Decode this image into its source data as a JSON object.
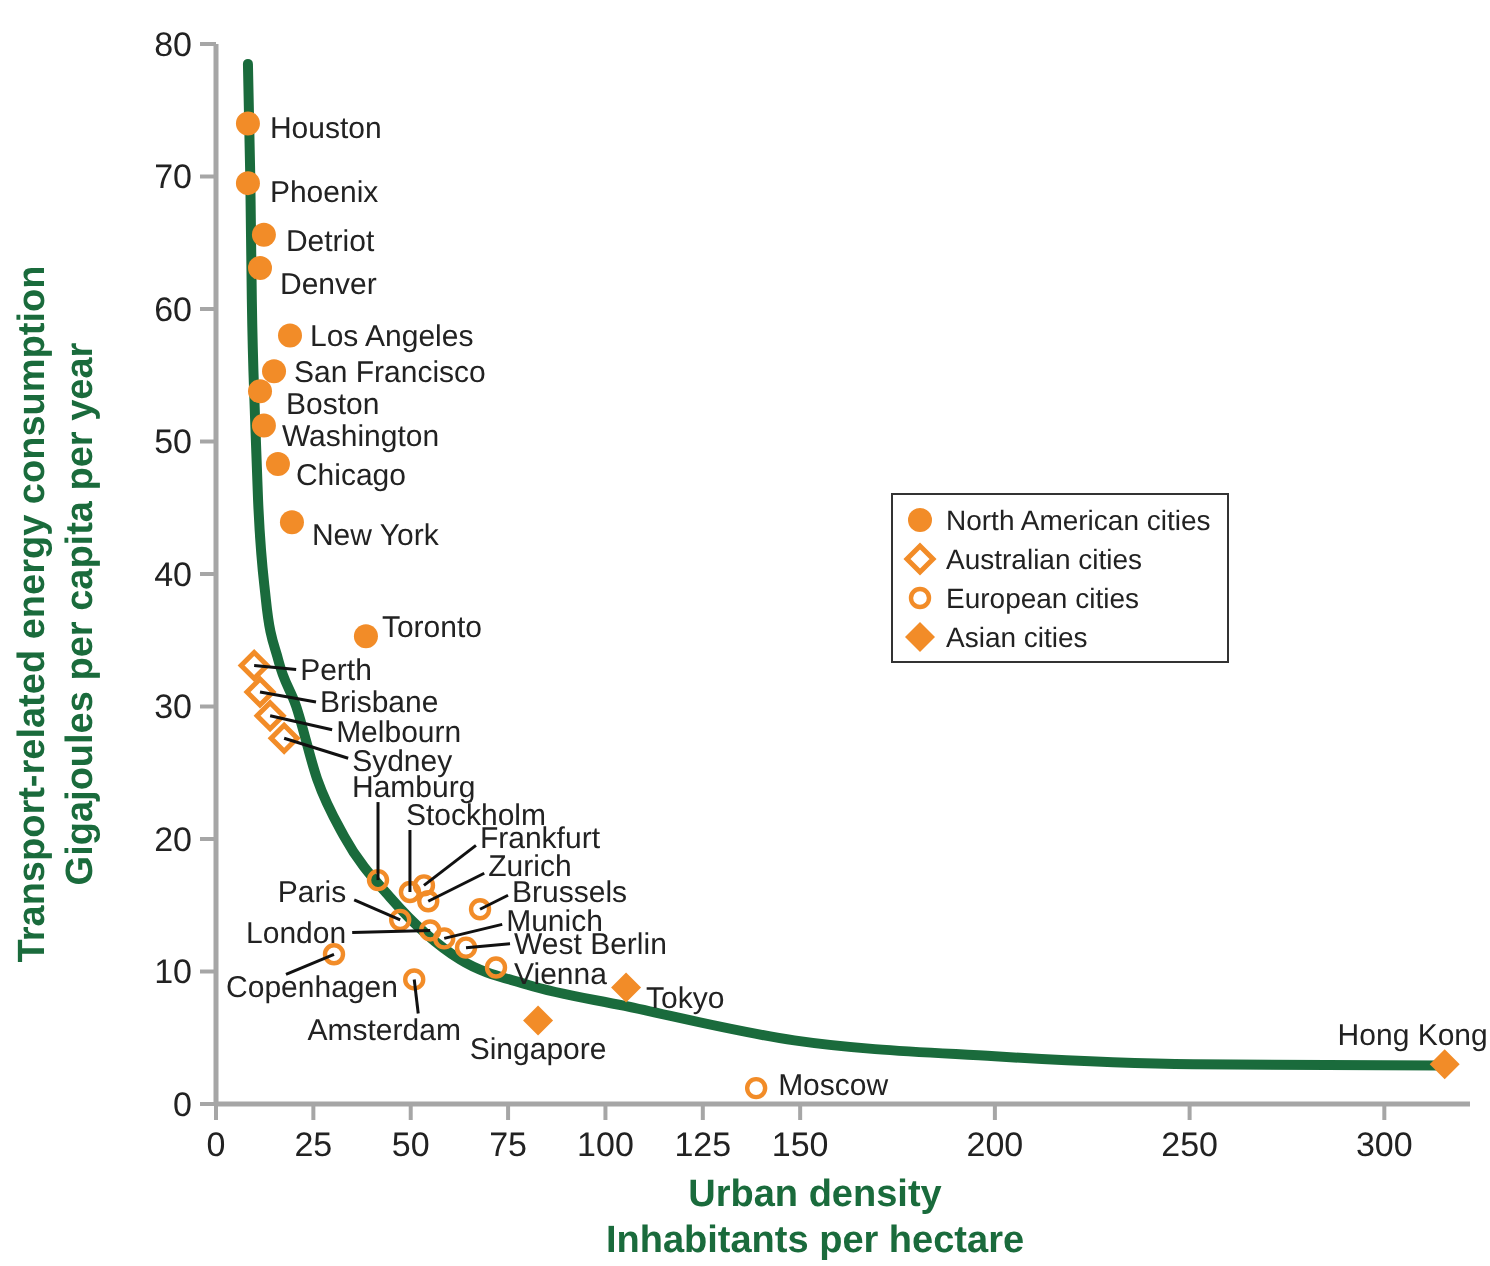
{
  "chart_data": {
    "type": "scatter",
    "xlabel": "Urban density\nInhabitants per hectare",
    "ylabel": "Transport-related energy consumption\nGigajoules  per capita per year",
    "xlim": [
      0,
      322
    ],
    "xticks": [
      0,
      25,
      50,
      75,
      100,
      125,
      150,
      200,
      250,
      300
    ],
    "ylim": [
      0,
      80
    ],
    "yticks": [
      0,
      10,
      20,
      30,
      40,
      50,
      60,
      70,
      80
    ],
    "grid": false,
    "legend": "right",
    "series": [
      {
        "type": "line",
        "color": "#1a6b3c",
        "marker": "none",
        "line_style": "solid",
        "x": [
          8.2,
          8.8,
          9.2,
          10.0,
          10.8,
          12.8,
          16,
          20.6,
          26,
          32.9,
          45,
          62.7,
          80,
          105,
          148.5,
          200,
          251,
          314.5
        ],
        "values": [
          78.5,
          70,
          60.7,
          52,
          45.6,
          38.1,
          33.5,
          30,
          24.5,
          20.2,
          15.5,
          10.9,
          9,
          7.4,
          4.8,
          3.6,
          3.0,
          2.9
        ]
      },
      {
        "name": "North American cities",
        "color": "#f28c28",
        "marker": "circle",
        "x": [
          8.2,
          8.2,
          12.3,
          11.3,
          19,
          14.9,
          11.3,
          12.3,
          15.9,
          19.5,
          38.5
        ],
        "values": [
          74.0,
          69.5,
          65.6,
          63.1,
          58.0,
          55.3,
          53.8,
          51.2,
          48.3,
          43.9,
          35.3
        ]
      },
      {
        "name": "Australian cities",
        "color": "#f28c28",
        "marker": "diamond-open",
        "x": [
          9.8,
          11.3,
          13.9,
          17.5
        ],
        "values": [
          33.1,
          31.1,
          29.3,
          27.6
        ]
      },
      {
        "name": "European cities",
        "color": "#f28c28",
        "marker": "circle-open",
        "x": [
          41.6,
          49.8,
          53.4,
          54.5,
          67.8,
          47.3,
          55,
          58.6,
          64.2,
          71.9,
          30.3,
          50.9,
          138.7
        ],
        "values": [
          16.9,
          16.0,
          16.5,
          15.3,
          14.7,
          13.9,
          13.1,
          12.5,
          11.8,
          10.3,
          11.3,
          9.4,
          1.2
        ]
      },
      {
        "name": "Asian cities",
        "color": "#f28c28",
        "marker": "diamond",
        "x": [
          105.3,
          82.7,
          315.5
        ],
        "values": [
          8.8,
          6.3,
          3.0
        ]
      }
    ],
    "annotations": [
      {
        "text": "Houston",
        "x": 8.2,
        "y": 74.0
      },
      {
        "text": "Phoenix",
        "x": 8.2,
        "y": 69.5
      },
      {
        "text": "Detriot",
        "x": 12.3,
        "y": 65.6
      },
      {
        "text": "Denver",
        "x": 11.3,
        "y": 63.1
      },
      {
        "text": "Los Angeles",
        "x": 19,
        "y": 58.0
      },
      {
        "text": "San Francisco",
        "x": 14.9,
        "y": 55.3
      },
      {
        "text": "Boston",
        "x": 11.3,
        "y": 53.8
      },
      {
        "text": "Washington",
        "x": 12.3,
        "y": 51.2
      },
      {
        "text": "Chicago",
        "x": 15.9,
        "y": 48.3
      },
      {
        "text": "New York",
        "x": 19.5,
        "y": 43.9
      },
      {
        "text": "Toronto",
        "x": 38.5,
        "y": 35.3
      },
      {
        "text": "Perth",
        "x": 9.8,
        "y": 33.1
      },
      {
        "text": "Brisbane",
        "x": 11.3,
        "y": 31.1
      },
      {
        "text": "Melbourn",
        "x": 13.9,
        "y": 29.3
      },
      {
        "text": "Sydney",
        "x": 17.5,
        "y": 27.6
      },
      {
        "text": "Hamburg",
        "x": 41.6,
        "y": 16.9
      },
      {
        "text": "Stockholm",
        "x": 49.8,
        "y": 16.0
      },
      {
        "text": "Frankfurt",
        "x": 53.4,
        "y": 16.5
      },
      {
        "text": "Zurich",
        "x": 54.5,
        "y": 15.3
      },
      {
        "text": "Brussels",
        "x": 67.8,
        "y": 14.7
      },
      {
        "text": "Paris",
        "x": 47.3,
        "y": 13.9
      },
      {
        "text": "London",
        "x": 55,
        "y": 13.1
      },
      {
        "text": "Munich",
        "x": 58.6,
        "y": 12.5
      },
      {
        "text": "West Berlin",
        "x": 64.2,
        "y": 11.8
      },
      {
        "text": "Vienna",
        "x": 71.9,
        "y": 10.3
      },
      {
        "text": "Copenhagen",
        "x": 30.3,
        "y": 11.3
      },
      {
        "text": "Amsterdam",
        "x": 50.9,
        "y": 9.4
      },
      {
        "text": "Moscow",
        "x": 138.7,
        "y": 1.2
      },
      {
        "text": "Tokyo",
        "x": 105.3,
        "y": 8.8
      },
      {
        "text": "Singapore",
        "x": 82.7,
        "y": 6.3
      },
      {
        "text": "Hong Kong",
        "x": 315.5,
        "y": 3.0
      }
    ]
  }
}
